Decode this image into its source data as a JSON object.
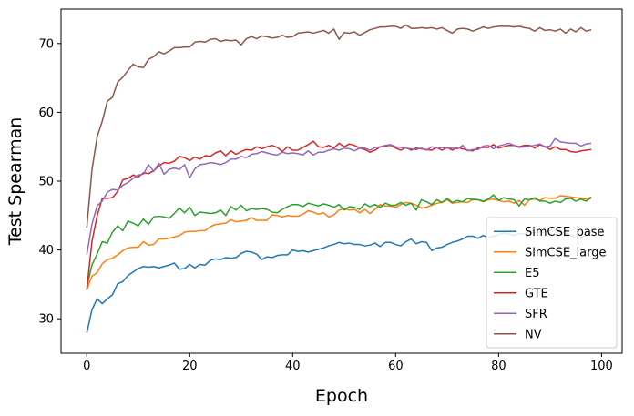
{
  "chart_data": {
    "type": "line",
    "xlabel": "Epoch",
    "ylabel": "Test Spearman",
    "xlim": [
      -5,
      104
    ],
    "ylim": [
      25,
      75
    ],
    "xticks": [
      0,
      20,
      40,
      60,
      80,
      100
    ],
    "yticks": [
      30,
      40,
      50,
      60,
      70
    ],
    "grid": false,
    "legend_position": "lower-right",
    "series": [
      {
        "name": "SimCSE_base",
        "color": "#1f77b4",
        "values": [
          27.9,
          31.3,
          32.9,
          32.2,
          32.9,
          33.5,
          35.1,
          35.4,
          36.3,
          36.8,
          37.3,
          37.6,
          37.5,
          37.6,
          37.4,
          37.6,
          37.8,
          38.1,
          37.2,
          37.3,
          37.9,
          37.4,
          37.9,
          37.8,
          38.5,
          38.7,
          38.6,
          38.9,
          38.8,
          38.9,
          39.5,
          39.8,
          39.7,
          39.4,
          38.6,
          39.0,
          38.9,
          39.2,
          39.3,
          39.3,
          40.0,
          39.8,
          39.9,
          39.7,
          39.9,
          40.1,
          40.3,
          40.6,
          40.8,
          41.1,
          40.9,
          41.0,
          40.8,
          40.8,
          40.6,
          40.7,
          41.0,
          40.5,
          41.1,
          41.1,
          40.8,
          40.6,
          41.2,
          41.6,
          40.9,
          41.2,
          41.1,
          39.9,
          40.3,
          40.4,
          40.8,
          41.1,
          41.3,
          41.6,
          42.0,
          42.0,
          41.7,
          42.1,
          41.8,
          42.0,
          42.2,
          42.5,
          42.3,
          42.1,
          42.4,
          42.3,
          42.7,
          42.5,
          42.6,
          42.6,
          42.8,
          42.9,
          42.6,
          42.4,
          42.1,
          41.9,
          41.8,
          42.1,
          42.6
        ]
      },
      {
        "name": "SimCSE_large",
        "color": "#ff7f0e",
        "values": [
          34.2,
          36.2,
          36.7,
          38.0,
          38.6,
          38.8,
          39.3,
          39.9,
          40.3,
          40.4,
          40.4,
          41.2,
          40.7,
          40.8,
          41.6,
          41.6,
          41.7,
          41.9,
          42.1,
          42.6,
          42.7,
          42.7,
          42.8,
          42.8,
          43.4,
          43.7,
          43.8,
          43.9,
          44.4,
          44.1,
          44.2,
          44.3,
          44.7,
          44.3,
          44.3,
          44.3,
          45.1,
          45.0,
          44.8,
          45.0,
          44.9,
          44.9,
          45.2,
          45.7,
          45.5,
          45.2,
          45.4,
          44.8,
          45.1,
          45.8,
          46.0,
          45.8,
          45.9,
          45.4,
          45.9,
          45.3,
          45.9,
          46.6,
          46.4,
          46.4,
          46.2,
          46.6,
          46.9,
          46.8,
          46.5,
          46.1,
          46.2,
          46.5,
          46.8,
          46.9,
          47.3,
          46.8,
          46.9,
          47.0,
          46.9,
          47.4,
          47.3,
          47.0,
          47.3,
          47.4,
          47.2,
          47.0,
          47.1,
          46.8,
          47.2,
          46.5,
          47.3,
          47.4,
          47.2,
          47.6,
          47.5,
          47.5,
          47.9,
          47.8,
          47.7,
          47.6,
          47.5,
          47.4,
          47.7
        ]
      },
      {
        "name": "E5",
        "color": "#2ca02c",
        "values": [
          34.6,
          37.8,
          39.4,
          41.2,
          41.0,
          42.6,
          43.5,
          42.8,
          44.2,
          43.9,
          43.5,
          44.5,
          43.7,
          44.8,
          44.9,
          44.8,
          44.6,
          45.3,
          46.1,
          45.4,
          46.2,
          45.0,
          45.5,
          45.4,
          45.3,
          45.4,
          45.8,
          45.0,
          46.3,
          45.8,
          46.5,
          45.7,
          46.0,
          45.9,
          46.0,
          45.9,
          45.5,
          45.4,
          45.9,
          46.3,
          46.6,
          46.6,
          46.3,
          46.8,
          46.6,
          46.4,
          46.7,
          46.5,
          46.2,
          46.6,
          45.8,
          46.3,
          46.2,
          45.9,
          46.7,
          46.3,
          46.6,
          46.2,
          46.8,
          46.5,
          46.5,
          46.9,
          46.5,
          46.8,
          45.8,
          47.3,
          47.0,
          46.6,
          47.3,
          46.9,
          47.5,
          46.9,
          47.2,
          47.0,
          47.5,
          47.3,
          47.3,
          47.1,
          47.4,
          48.0,
          47.2,
          47.6,
          47.4,
          47.3,
          46.4,
          47.4,
          47.3,
          47.6,
          47.1,
          47.1,
          46.8,
          47.1,
          46.9,
          47.4,
          47.5,
          47.1,
          47.4,
          47.1,
          47.6
        ]
      },
      {
        "name": "GTE",
        "color": "#d62728",
        "values": [
          34.2,
          41.2,
          44.9,
          47.5,
          47.5,
          47.6,
          48.5,
          50.2,
          50.4,
          50.9,
          50.6,
          51.2,
          51.1,
          51.5,
          52.2,
          52.7,
          52.6,
          52.9,
          53.6,
          53.4,
          53.0,
          53.5,
          53.2,
          53.7,
          53.6,
          54.1,
          54.4,
          53.7,
          54.4,
          53.9,
          54.3,
          54.6,
          54.5,
          55.0,
          54.7,
          55.0,
          55.2,
          54.9,
          54.3,
          55.0,
          54.5,
          54.5,
          54.9,
          55.3,
          55.8,
          55.0,
          54.9,
          55.2,
          54.8,
          55.5,
          55.0,
          55.4,
          55.2,
          54.8,
          54.6,
          54.2,
          54.5,
          55.0,
          55.1,
          55.2,
          54.8,
          54.5,
          54.9,
          54.5,
          54.8,
          54.7,
          54.6,
          54.5,
          54.9,
          54.5,
          54.9,
          54.5,
          54.9,
          54.7,
          54.5,
          54.4,
          54.8,
          54.9,
          54.9,
          55.3,
          54.8,
          55.0,
          55.2,
          55.2,
          55.0,
          55.2,
          55.2,
          54.8,
          55.3,
          55.0,
          54.6,
          55.0,
          54.6,
          54.6,
          54.3,
          54.2,
          54.4,
          54.5,
          54.6
        ]
      },
      {
        "name": "SFR",
        "color": "#9467bd",
        "values": [
          39.3,
          43.7,
          46.4,
          47.1,
          48.4,
          48.8,
          48.7,
          49.4,
          49.8,
          50.4,
          50.9,
          51.0,
          52.4,
          51.4,
          52.6,
          51.0,
          51.7,
          51.9,
          51.7,
          52.4,
          50.5,
          51.8,
          52.4,
          52.5,
          52.7,
          52.6,
          52.4,
          52.7,
          53.2,
          53.2,
          53.6,
          53.4,
          53.9,
          54.0,
          54.3,
          54.1,
          53.9,
          53.8,
          54.2,
          54.0,
          54.1,
          54.0,
          53.8,
          54.4,
          53.8,
          54.2,
          54.2,
          54.5,
          54.7,
          54.5,
          54.8,
          54.7,
          54.4,
          54.8,
          54.8,
          54.5,
          54.9,
          55.0,
          55.2,
          55.3,
          55.0,
          54.9,
          54.8,
          54.7,
          54.6,
          54.8,
          54.5,
          55.0,
          54.8,
          54.9,
          54.8,
          54.8,
          54.7,
          55.2,
          54.4,
          54.6,
          54.6,
          55.1,
          55.2,
          54.7,
          55.1,
          55.3,
          55.5,
          55.2,
          54.9,
          55.0,
          55.1,
          55.2,
          55.4,
          55.0,
          55.1,
          56.2,
          55.7,
          55.6,
          55.5,
          55.5,
          55.1,
          55.4,
          55.5
        ]
      },
      {
        "name": "NV",
        "color": "#8c564b",
        "values": [
          43.2,
          51.6,
          56.4,
          58.7,
          61.6,
          62.2,
          64.4,
          65.1,
          66.1,
          67.0,
          66.6,
          66.5,
          67.7,
          68.1,
          68.8,
          68.5,
          68.9,
          69.4,
          69.4,
          69.5,
          69.5,
          70.2,
          70.3,
          70.2,
          70.6,
          70.7,
          70.3,
          70.5,
          70.4,
          70.5,
          69.8,
          70.7,
          71.0,
          70.7,
          71.1,
          71.0,
          70.8,
          70.9,
          71.2,
          70.9,
          71.0,
          71.5,
          71.6,
          71.7,
          71.5,
          71.7,
          71.9,
          71.5,
          72.1,
          70.6,
          71.6,
          71.5,
          71.7,
          71.2,
          71.6,
          72.0,
          72.2,
          72.4,
          72.4,
          72.5,
          72.5,
          72.2,
          72.7,
          72.2,
          72.2,
          72.3,
          72.2,
          72.3,
          72.1,
          72.3,
          71.9,
          71.5,
          72.1,
          72.2,
          72.1,
          71.8,
          72.1,
          72.4,
          72.2,
          72.4,
          72.5,
          72.5,
          72.5,
          72.4,
          72.5,
          72.3,
          72.2,
          71.8,
          72.3,
          71.9,
          72.0,
          71.8,
          72.1,
          71.5,
          72.1,
          71.7,
          72.3,
          71.8,
          72.0
        ]
      }
    ]
  }
}
